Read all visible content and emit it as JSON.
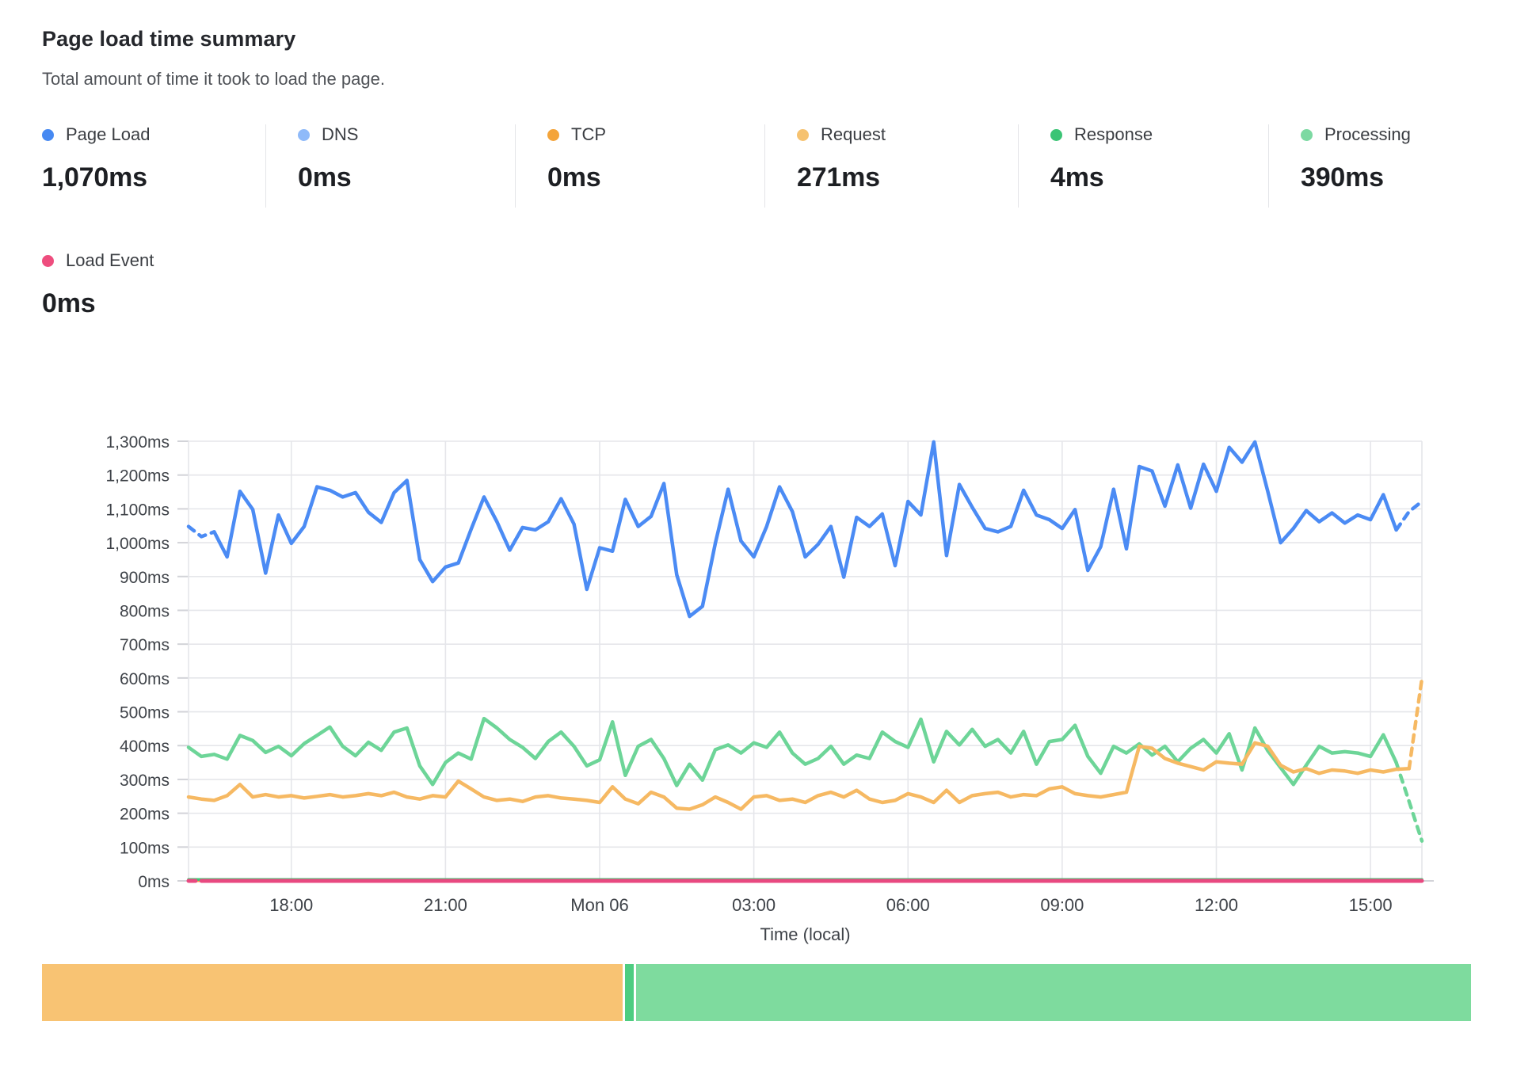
{
  "header": {
    "title": "Page load time summary",
    "subtitle": "Total amount of time it took to load the page."
  },
  "metrics": [
    {
      "label": "Page Load",
      "value": "1,070ms",
      "color": "#4689f2"
    },
    {
      "label": "DNS",
      "value": "0ms",
      "color": "#8fbaf9"
    },
    {
      "label": "TCP",
      "value": "0ms",
      "color": "#f4a43a"
    },
    {
      "label": "Request",
      "value": "271ms",
      "color": "#f6c270"
    },
    {
      "label": "Response",
      "value": "4ms",
      "color": "#3bc475"
    },
    {
      "label": "Processing",
      "value": "390ms",
      "color": "#7cd9a2"
    },
    {
      "label": "Load Event",
      "value": "0ms",
      "color": "#ee4d7e"
    }
  ],
  "chart_data": {
    "type": "line",
    "title": "Page load time summary",
    "xlabel": "Time (local)",
    "ylabel": "",
    "x_start": 16,
    "x_step": 0.25,
    "x_end": 40,
    "n_points": 97,
    "x_ticks": [
      {
        "t": 18,
        "label": "18:00"
      },
      {
        "t": 21,
        "label": "21:00"
      },
      {
        "t": 24,
        "label": "Mon 06"
      },
      {
        "t": 27,
        "label": "03:00"
      },
      {
        "t": 30,
        "label": "06:00"
      },
      {
        "t": 33,
        "label": "09:00"
      },
      {
        "t": 36,
        "label": "12:00"
      },
      {
        "t": 39,
        "label": "15:00"
      }
    ],
    "y_axis": {
      "min": 0,
      "max": 1300,
      "step": 100,
      "suffix": "ms"
    },
    "grid": true,
    "grid_color": "#e5e6ea",
    "tick_color": "#d2d3d8",
    "tick_text_color": "#3f4349",
    "legend_position": "top",
    "series": [
      {
        "name": "DNS",
        "color": "#8fbaf9",
        "width": 3,
        "constant": 0
      },
      {
        "name": "TCP",
        "color": "#f4a43a",
        "width": 3,
        "constant": 0
      },
      {
        "name": "Response",
        "color": "#3ec573",
        "width": 3.5,
        "constant": 4
      },
      {
        "name": "Processing",
        "color": "#6dd598",
        "width": 4.5,
        "tail_dash": 2,
        "values": [
          395,
          368,
          374,
          360,
          430,
          415,
          380,
          398,
          370,
          406,
          430,
          455,
          398,
          370,
          410,
          386,
          440,
          452,
          340,
          285,
          350,
          378,
          360,
          480,
          452,
          418,
          395,
          362,
          412,
          440,
          398,
          340,
          358,
          470,
          312,
          398,
          418,
          362,
          282,
          345,
          298,
          388,
          402,
          378,
          408,
          395,
          440,
          378,
          345,
          362,
          398,
          345,
          372,
          362,
          440,
          412,
          395,
          478,
          352,
          442,
          402,
          448,
          398,
          418,
          378,
          442,
          345,
          412,
          418,
          460,
          368,
          318,
          398,
          378,
          405,
          372,
          398,
          352,
          392,
          418,
          378,
          435,
          328,
          452,
          385,
          335,
          285,
          342,
          398,
          378,
          382,
          378,
          368,
          432,
          350,
          235,
          118
        ]
      },
      {
        "name": "Request",
        "color": "#f6b963",
        "width": 4.5,
        "tail_dash": 1,
        "values": [
          248,
          242,
          238,
          252,
          285,
          248,
          255,
          248,
          252,
          245,
          250,
          255,
          248,
          252,
          258,
          252,
          262,
          248,
          242,
          252,
          248,
          295,
          272,
          248,
          238,
          242,
          235,
          248,
          252,
          245,
          242,
          238,
          232,
          278,
          242,
          228,
          262,
          248,
          215,
          212,
          225,
          248,
          232,
          212,
          248,
          252,
          238,
          242,
          232,
          252,
          262,
          248,
          268,
          242,
          232,
          238,
          258,
          248,
          232,
          268,
          232,
          252,
          258,
          262,
          248,
          255,
          252,
          272,
          278,
          258,
          252,
          248,
          255,
          262,
          398,
          392,
          362,
          348,
          338,
          328,
          352,
          348,
          345,
          408,
          398,
          342,
          322,
          332,
          318,
          328,
          325,
          318,
          328,
          322,
          330,
          332,
          598
        ]
      },
      {
        "name": "Load Event",
        "color": "#e84980",
        "width": 5,
        "head_dash": 1,
        "constant": 0
      },
      {
        "name": "Page Load",
        "color": "#4b8bf4",
        "width": 4.5,
        "head_dash": 2,
        "tail_dash": 2,
        "values": [
          1048,
          1018,
          1032,
          958,
          1152,
          1098,
          910,
          1082,
          998,
          1048,
          1165,
          1155,
          1135,
          1148,
          1090,
          1060,
          1148,
          1184,
          950,
          885,
          928,
          940,
          1040,
          1135,
          1062,
          978,
          1045,
          1038,
          1062,
          1130,
          1055,
          862,
          985,
          975,
          1128,
          1048,
          1078,
          1175,
          905,
          782,
          812,
          998,
          1158,
          1005,
          958,
          1048,
          1165,
          1092,
          958,
          995,
          1048,
          898,
          1075,
          1048,
          1085,
          932,
          1122,
          1082,
          1298,
          962,
          1172,
          1105,
          1042,
          1032,
          1048,
          1155,
          1082,
          1068,
          1042,
          1098,
          918,
          988,
          1158,
          982,
          1225,
          1212,
          1108,
          1230,
          1102,
          1232,
          1152,
          1282,
          1238,
          1298,
          1152,
          1000,
          1042,
          1095,
          1062,
          1088,
          1058,
          1082,
          1068,
          1142,
          1038,
          1092,
          1122
        ]
      }
    ]
  },
  "footer_bar": {
    "segments": [
      {
        "name": "Request",
        "value": 271,
        "color": "#f8c373"
      },
      {
        "name": "Response",
        "value": 4,
        "color": "#4ecd81"
      },
      {
        "name": "Processing",
        "value": 390,
        "color": "#7edb9e"
      }
    ]
  }
}
